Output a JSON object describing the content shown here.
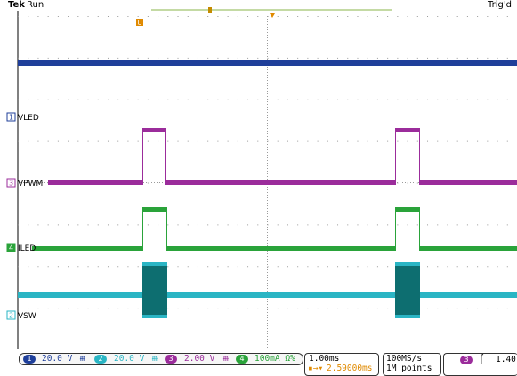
{
  "header": {
    "brand": "Tek",
    "status": "Run",
    "trigger_status": "Trig'd"
  },
  "channels": [
    {
      "id": "1",
      "label": "VLED",
      "scale": "20.0 V",
      "color": "#1f3f9a"
    },
    {
      "id": "3",
      "label": "VPWM",
      "scale": "2.00 V",
      "color": "#9b2c9b"
    },
    {
      "id": "4",
      "label": "ILED",
      "scale": "100mA Ω%",
      "color": "#2aa33a"
    },
    {
      "id": "2",
      "label": "VSW",
      "scale": "20.0 V",
      "color": "#2ab5c4"
    }
  ],
  "markers": {
    "trigger_pos": "T",
    "ref": "U"
  },
  "horizontal": {
    "time_div": "1.00ms",
    "delay": "2.59000ms"
  },
  "acquisition": {
    "sample_rate": "100MS/s",
    "record_length": "1M points"
  },
  "trigger": {
    "source": "3",
    "slope": "⌠",
    "level": "1.40"
  },
  "bandwidth_icons": [
    "ᵯ",
    "ᵯ",
    "ᵯ"
  ]
}
